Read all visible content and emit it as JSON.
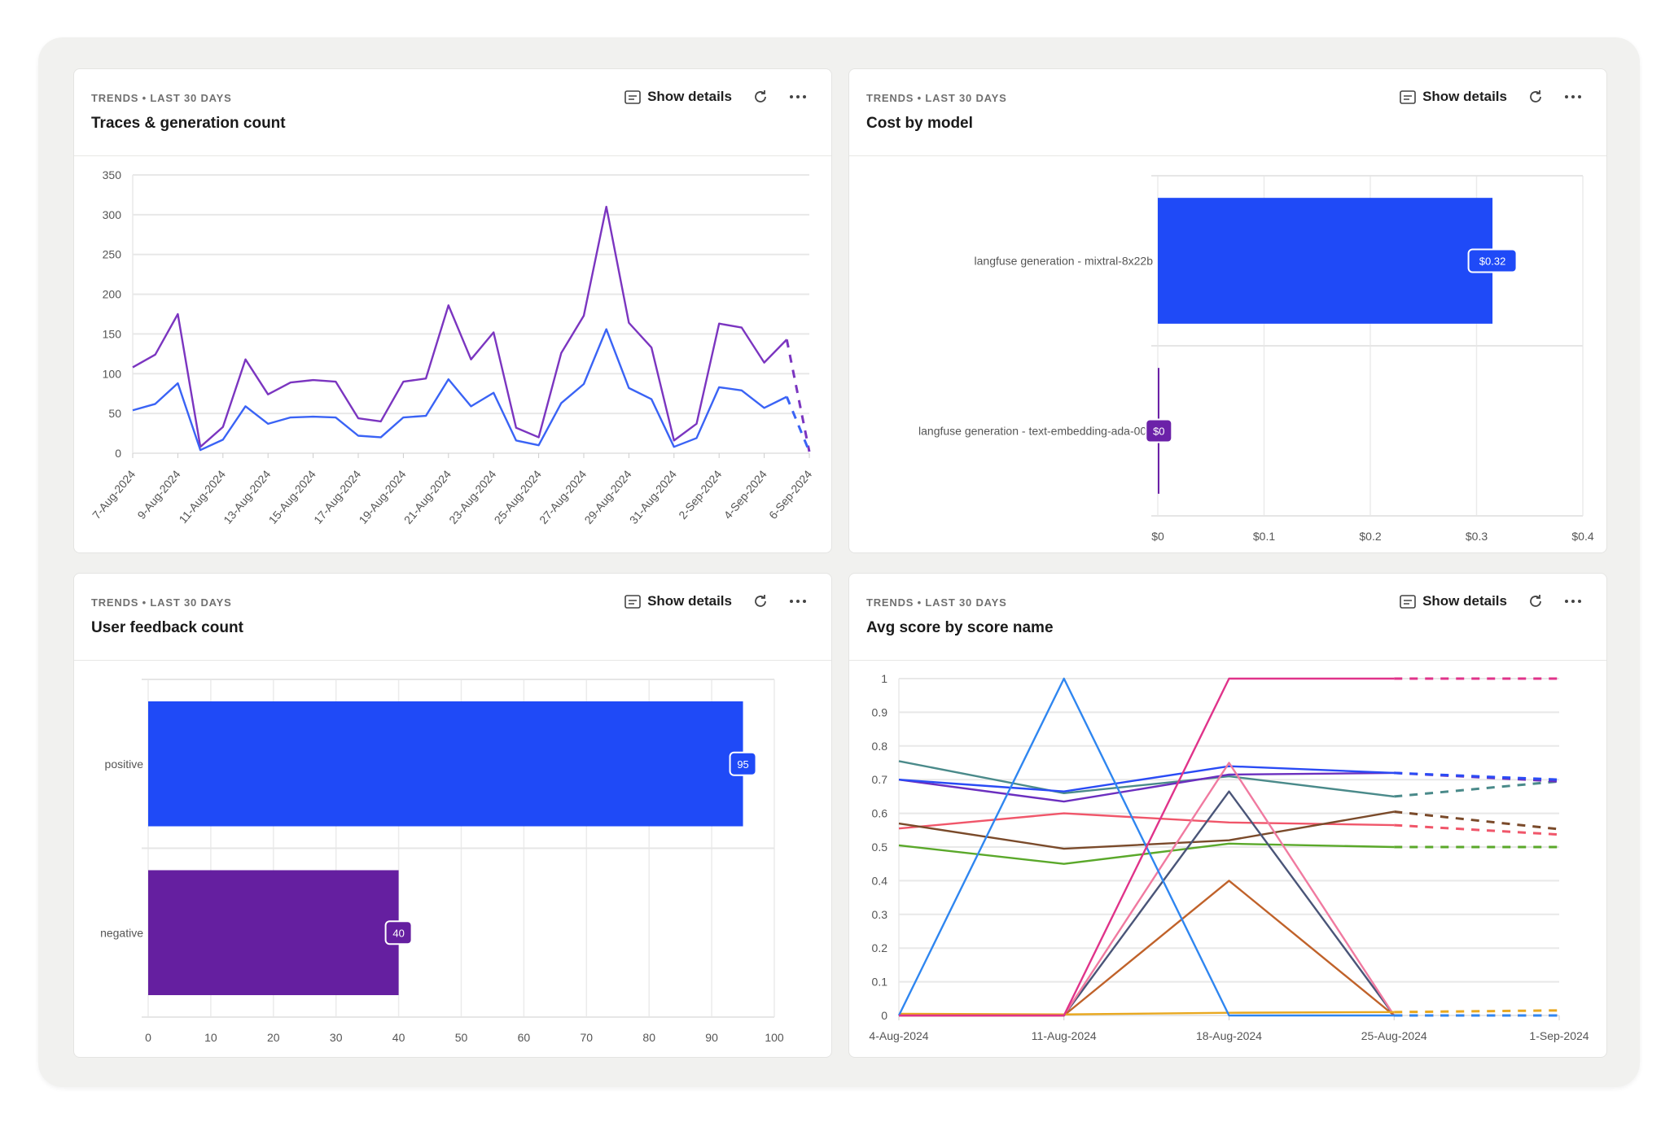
{
  "common": {
    "label": "TRENDS • LAST 30 DAYS",
    "show_details": "Show details",
    "icons": {
      "details": "details-card-icon",
      "refresh": "refresh-icon",
      "more": "more-horizontal-icon"
    }
  },
  "cards": [
    {
      "title": "Traces & generation count"
    },
    {
      "title": "Cost by model"
    },
    {
      "title": "User feedback count"
    },
    {
      "title": "Avg score by score name"
    }
  ],
  "chart_data": [
    {
      "type": "line",
      "ylim": [
        0,
        350
      ],
      "yticks": [
        "0",
        "50",
        "100",
        "150",
        "200",
        "250",
        "300",
        "350"
      ],
      "grid": true,
      "x": [
        "7-Aug-2024",
        "8-Aug-2024",
        "9-Aug-2024",
        "10-Aug-2024",
        "11-Aug-2024",
        "12-Aug-2024",
        "13-Aug-2024",
        "14-Aug-2024",
        "15-Aug-2024",
        "16-Aug-2024",
        "17-Aug-2024",
        "18-Aug-2024",
        "19-Aug-2024",
        "20-Aug-2024",
        "21-Aug-2024",
        "22-Aug-2024",
        "23-Aug-2024",
        "24-Aug-2024",
        "25-Aug-2024",
        "26-Aug-2024",
        "27-Aug-2024",
        "28-Aug-2024",
        "29-Aug-2024",
        "30-Aug-2024",
        "31-Aug-2024",
        "1-Sep-2024",
        "2-Sep-2024",
        "3-Sep-2024",
        "4-Sep-2024",
        "5-Sep-2024",
        "6-Sep-2024"
      ],
      "xticks": [
        "7-Aug-2024",
        "9-Aug-2024",
        "11-Aug-2024",
        "13-Aug-2024",
        "15-Aug-2024",
        "17-Aug-2024",
        "19-Aug-2024",
        "21-Aug-2024",
        "23-Aug-2024",
        "25-Aug-2024",
        "27-Aug-2024",
        "29-Aug-2024",
        "31-Aug-2024",
        "2-Sep-2024",
        "4-Sep-2024",
        "6-Sep-2024"
      ],
      "series": [
        {
          "color": "#7b35c0",
          "values": [
            108,
            124,
            175,
            8,
            33,
            118,
            74,
            89,
            92,
            90,
            44,
            40,
            90,
            94,
            186,
            118,
            152,
            32,
            20,
            126,
            173,
            310,
            164,
            133,
            16,
            37,
            163,
            158,
            114,
            143,
            2
          ]
        },
        {
          "color": "#3a63f5",
          "values": [
            54,
            62,
            88,
            4,
            17,
            59,
            37,
            45,
            46,
            45,
            22,
            20,
            45,
            47,
            93,
            59,
            76,
            16,
            10,
            63,
            87,
            156,
            82,
            68,
            8,
            19,
            83,
            79,
            57,
            71,
            2
          ]
        }
      ]
    },
    {
      "type": "bar",
      "orientation": "horizontal",
      "xlim": [
        0,
        0.4
      ],
      "xticks": [
        "$0",
        "$0.1",
        "$0.2",
        "$0.3",
        "$0.4"
      ],
      "grid": true,
      "categories": [
        "langfuse generation - mixtral-8x22b",
        "langfuse generation - text-embedding-ada-002"
      ],
      "values": [
        0.315,
        0.001
      ],
      "labels": [
        "$0.32",
        "$0"
      ],
      "colors": [
        "#1f4af7",
        "#6b21a8"
      ]
    },
    {
      "type": "bar",
      "orientation": "horizontal",
      "xlim": [
        0,
        100
      ],
      "xticks": [
        "0",
        "10",
        "20",
        "30",
        "40",
        "50",
        "60",
        "70",
        "80",
        "90",
        "100"
      ],
      "grid": true,
      "categories": [
        "positive",
        "negative"
      ],
      "values": [
        95,
        40
      ],
      "labels": [
        "95",
        "40"
      ],
      "colors": [
        "#1f4af7",
        "#651fa0"
      ]
    },
    {
      "type": "line",
      "ylim": [
        0,
        1
      ],
      "yticks": [
        "0",
        "0.1",
        "0.2",
        "0.3",
        "0.4",
        "0.5",
        "0.6",
        "0.7",
        "0.8",
        "0.9",
        "1"
      ],
      "grid": true,
      "x": [
        "4-Aug-2024",
        "11-Aug-2024",
        "18-Aug-2024",
        "25-Aug-2024",
        "1-Sep-2024"
      ],
      "series": [
        {
          "color": "#4a8a8a",
          "values": [
            0.755,
            0.66,
            0.71,
            0.65,
            0.695
          ]
        },
        {
          "color": "#6b2fbf",
          "values": [
            0.7,
            0.635,
            0.715,
            0.72,
            0.695
          ]
        },
        {
          "color": "#2a4bf5",
          "values": [
            0.7,
            0.665,
            0.74,
            0.72,
            0.7
          ]
        },
        {
          "color": "#f0566a",
          "values": [
            0.555,
            0.6,
            0.573,
            0.565,
            0.537
          ]
        },
        {
          "color": "#7a4a2a",
          "values": [
            0.57,
            0.495,
            0.52,
            0.605,
            0.553
          ]
        },
        {
          "color": "#5aa82a",
          "values": [
            0.505,
            0.45,
            0.51,
            0.5,
            0.5
          ]
        },
        {
          "color": "#4a5578",
          "values": [
            0,
            0,
            0.665,
            0,
            0
          ]
        },
        {
          "color": "#f07aa0",
          "values": [
            0,
            0,
            0.75,
            0,
            0
          ]
        },
        {
          "color": "#c0622a",
          "values": [
            0,
            0,
            0.4,
            0,
            0
          ]
        },
        {
          "color": "#e8a820",
          "values": [
            0.005,
            0.003,
            0.008,
            0.01,
            0.015
          ]
        },
        {
          "color": "#2f86f0",
          "values": [
            0,
            1,
            0,
            0,
            0
          ]
        },
        {
          "color": "#e0338a",
          "values": [
            0,
            0,
            1,
            1,
            1
          ]
        }
      ]
    }
  ]
}
